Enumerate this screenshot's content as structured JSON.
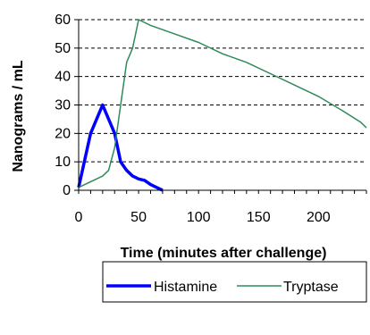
{
  "chart_data": {
    "type": "line",
    "xlabel": "Time (minutes after challenge)",
    "ylabel": "Nanograms / mL",
    "xlim": [
      0,
      240
    ],
    "ylim": [
      0,
      60
    ],
    "x_ticks": [
      0,
      50,
      100,
      150,
      200
    ],
    "y_ticks": [
      0,
      10,
      20,
      30,
      40,
      50,
      60
    ],
    "grid": "horizontal dashed",
    "legend": "bottom-right",
    "series": [
      {
        "name": "Histamine",
        "color": "#0000ff",
        "points": [
          [
            0,
            1
          ],
          [
            10,
            20
          ],
          [
            20,
            30
          ],
          [
            30,
            20
          ],
          [
            35,
            10
          ],
          [
            40,
            7
          ],
          [
            45,
            5
          ],
          [
            50,
            4
          ],
          [
            55,
            3.5
          ],
          [
            60,
            2
          ],
          [
            65,
            1
          ],
          [
            70,
            0
          ]
        ]
      },
      {
        "name": "Tryptase",
        "color": "#2e8b57",
        "points": [
          [
            0,
            1
          ],
          [
            10,
            3
          ],
          [
            20,
            5
          ],
          [
            25,
            7
          ],
          [
            30,
            15
          ],
          [
            35,
            30
          ],
          [
            40,
            45
          ],
          [
            45,
            50
          ],
          [
            50,
            60
          ],
          [
            60,
            58
          ],
          [
            80,
            55
          ],
          [
            100,
            52
          ],
          [
            120,
            48
          ],
          [
            140,
            45
          ],
          [
            160,
            41
          ],
          [
            180,
            37
          ],
          [
            200,
            33
          ],
          [
            220,
            28
          ],
          [
            235,
            24
          ],
          [
            240,
            22
          ]
        ]
      }
    ]
  }
}
